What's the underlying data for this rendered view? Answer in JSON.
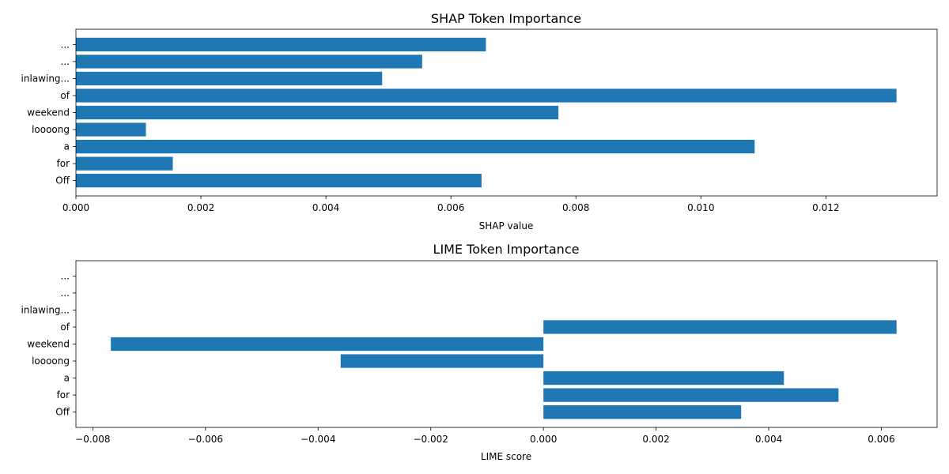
{
  "chart_data": [
    {
      "type": "bar",
      "orientation": "horizontal",
      "title": "SHAP Token Importance",
      "xlabel": "SHAP value",
      "ylabel": "",
      "categories": [
        "Off",
        "for",
        "a",
        "loooong",
        "weekend",
        "of",
        "inlawing...",
        "...",
        "..."
      ],
      "values": [
        0.00649,
        0.00155,
        0.01086,
        0.00112,
        0.00772,
        0.01313,
        0.0049,
        0.00554,
        0.00656
      ],
      "xlim": [
        0.0,
        0.01378
      ],
      "xticks": [
        0.0,
        0.002,
        0.004,
        0.006,
        0.008,
        0.01,
        0.012
      ],
      "xtick_labels": [
        "0.000",
        "0.002",
        "0.004",
        "0.006",
        "0.008",
        "0.010",
        "0.012"
      ],
      "grid": false,
      "color": "#1f77b4"
    },
    {
      "type": "bar",
      "orientation": "horizontal",
      "title": "LIME Token Importance",
      "xlabel": "LIME score",
      "ylabel": "",
      "categories": [
        "Off",
        "for",
        "a",
        "loooong",
        "weekend",
        "of",
        "inlawing...",
        "...",
        "..."
      ],
      "values": [
        0.00351,
        0.00524,
        0.00427,
        -0.0036,
        -0.00768,
        0.00627,
        0.0,
        0.0,
        0.0
      ],
      "xlim": [
        -0.0083,
        0.00699
      ],
      "xticks": [
        -0.008,
        -0.006,
        -0.004,
        -0.002,
        0.0,
        0.002,
        0.004,
        0.006
      ],
      "xtick_labels": [
        "−0.008",
        "−0.006",
        "−0.004",
        "−0.002",
        "0.000",
        "0.002",
        "0.004",
        "0.006"
      ],
      "grid": false,
      "color": "#1f77b4"
    }
  ]
}
